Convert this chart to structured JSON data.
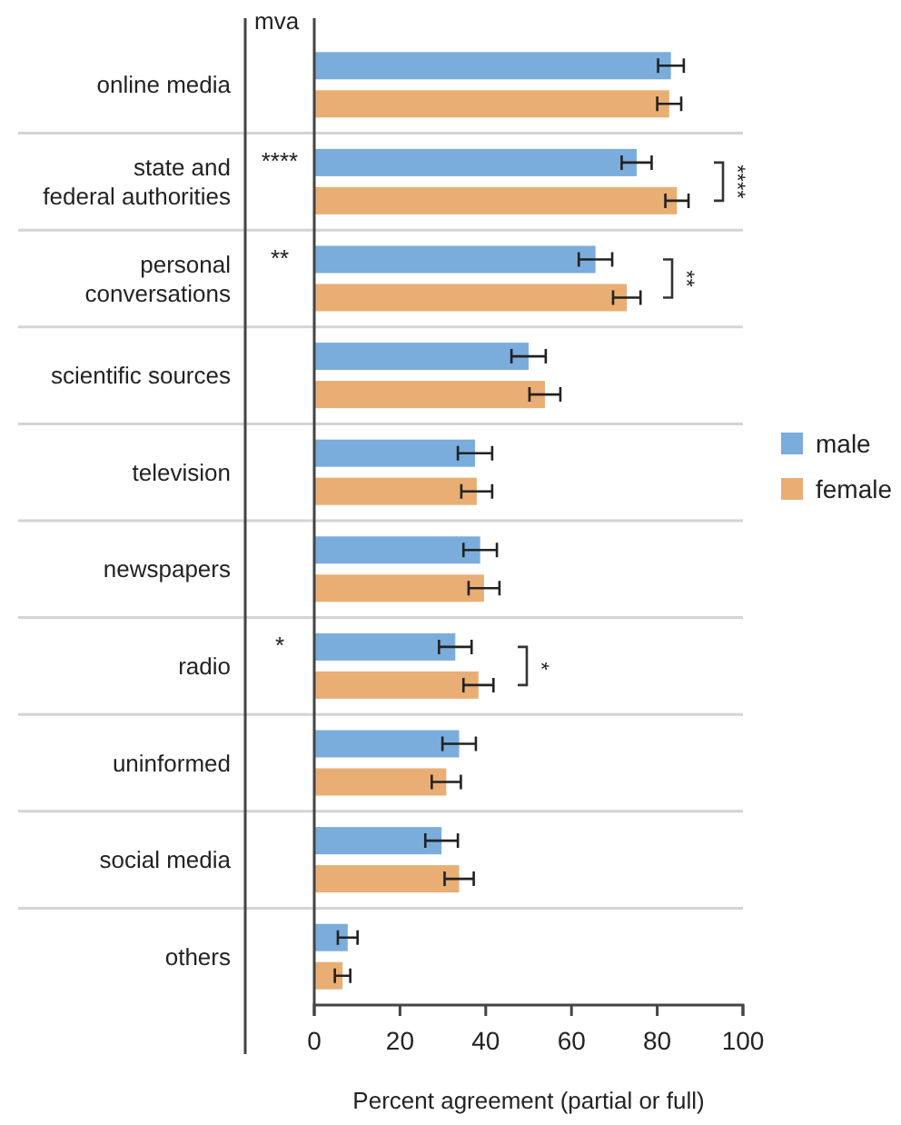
{
  "chart_data": {
    "type": "bar",
    "orientation": "horizontal",
    "xlabel": "Percent agreement (partial or full)",
    "categories": [
      "online media",
      "state and federal authorities",
      "personal conversations",
      "scientific sources",
      "television",
      "newspapers",
      "radio",
      "uninformed",
      "social media",
      "others"
    ],
    "series": [
      {
        "name": "male",
        "color": "#7aaddb",
        "values": [
          83.2,
          75.2,
          65.6,
          50,
          37.5,
          38.7,
          32.9,
          33.8,
          29.7,
          7.8
        ],
        "errors": [
          3,
          3.5,
          3.9,
          4,
          4,
          3.9,
          3.8,
          3.9,
          3.8,
          2.3
        ]
      },
      {
        "name": "female",
        "color": "#e9ae74",
        "values": [
          82.8,
          84.6,
          72.9,
          53.8,
          37.9,
          39.6,
          38.3,
          30.8,
          33.8,
          6.6
        ],
        "errors": [
          2.8,
          2.7,
          3.2,
          3.6,
          3.6,
          3.6,
          3.5,
          3.4,
          3.4,
          1.8
        ]
      }
    ],
    "xlim": [
      0,
      100
    ],
    "xticks": [
      0,
      20,
      40,
      60,
      80,
      100
    ],
    "legend": "right",
    "annotations": [
      "mva",
      "****",
      "**",
      "*",
      "****",
      "**",
      "*"
    ]
  }
}
